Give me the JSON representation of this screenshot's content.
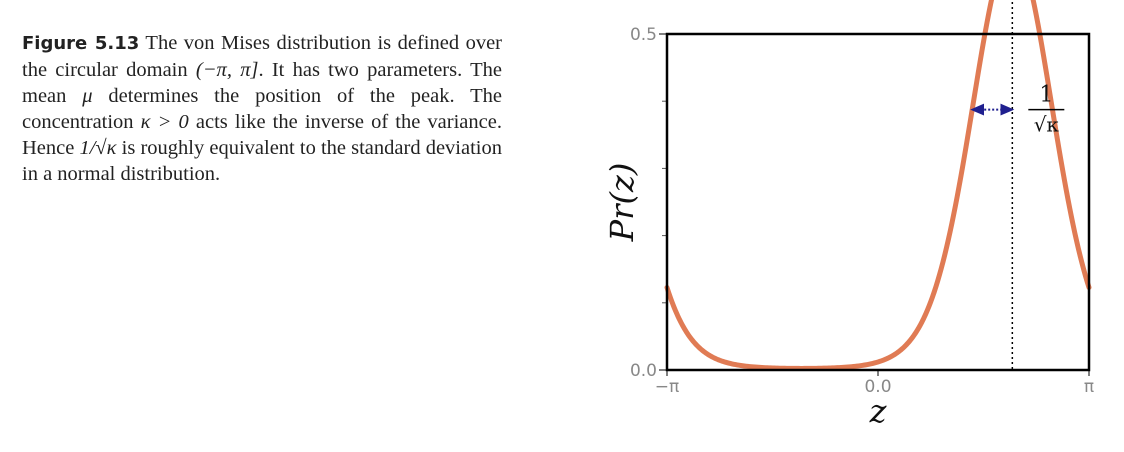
{
  "caption": {
    "figure_label": "Figure 5.13",
    "text_1": "The von Mises distribution is defined over the circular domain ",
    "domain_math": "(−π, π]",
    "text_2": ". It has two parameters. The mean ",
    "mu": "μ",
    "text_3": " determines the position of the peak. The concentration ",
    "kappa_cond": "κ > 0",
    "text_4": " acts like the inverse of the variance. Hence ",
    "sd_math": "1/√κ",
    "text_5": " is roughly equivalent to the standard deviation in a normal distribution."
  },
  "chart_data": {
    "type": "line",
    "title": "",
    "xlabel": "z",
    "ylabel": "Pr(z)",
    "xlim": [
      -3.14159,
      3.14159
    ],
    "ylim": [
      0,
      0.5
    ],
    "x_ticks": [
      {
        "value": -3.14159,
        "label": "−π"
      },
      {
        "value": 0,
        "label": "0.0"
      },
      {
        "value": 3.14159,
        "label": "π"
      }
    ],
    "y_ticks": [
      {
        "value": 0,
        "label": "0.0"
      },
      {
        "value": 0.5,
        "label": "0.5"
      }
    ],
    "y_minor_ticks": [
      0.1,
      0.2,
      0.3,
      0.4
    ],
    "grid": false,
    "series": [
      {
        "name": "",
        "color": "#E07B54",
        "distribution": "von Mises",
        "mu": 2.0,
        "kappa": 2.8
      }
    ],
    "annotations": {
      "mean_label": "μ",
      "width_label_numerator": "1",
      "width_label_denominator": "√κ",
      "arrow_color": "#1f1f8f"
    }
  }
}
